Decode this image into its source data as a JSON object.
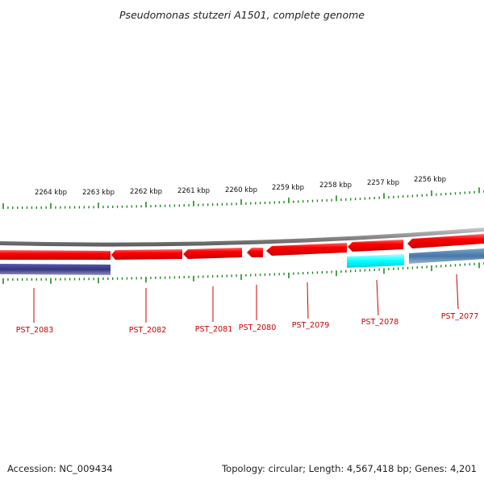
{
  "title": "Pseudomonas stutzeri A1501, complete genome",
  "footer": {
    "accession": "Accession: NC_009434",
    "summary": "Topology: circular; Length: 4,567,418 bp; Genes: 4,201"
  },
  "colors": {
    "tick": "#1f8a1f",
    "gene_forward": "#ff0000",
    "gene_label": "#cc0000",
    "backbone": "#808080",
    "feature_navy": "#3a3a8a",
    "feature_cyan": "#00ffff",
    "feature_steel": "#4f7fb0"
  },
  "scale_labels": [
    "2264 kbp",
    "2263 kbp",
    "2262 kbp",
    "2261 kbp",
    "2260 kbp",
    "2259 kbp",
    "2258 kbp",
    "2257 kbp",
    "2256 kbp"
  ],
  "genes": [
    "PST_2083",
    "PST_2082",
    "PST_2081",
    "PST_2080",
    "PST_2079",
    "PST_2078",
    "PST_2077"
  ]
}
